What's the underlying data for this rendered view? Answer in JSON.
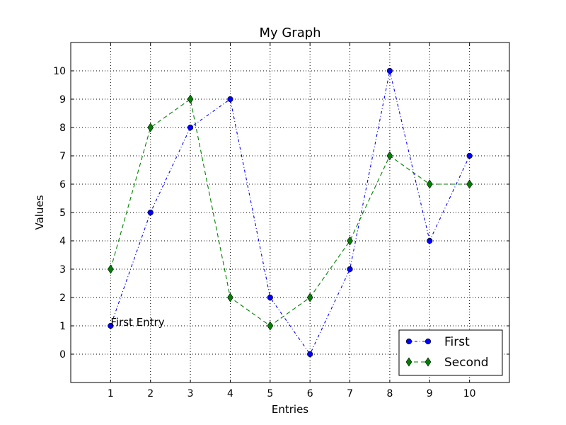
{
  "chart_data": {
    "type": "line",
    "title": "My Graph",
    "xlabel": "Entries",
    "ylabel": "Values",
    "x": [
      1,
      2,
      3,
      4,
      5,
      6,
      7,
      8,
      9,
      10
    ],
    "xlim": [
      0,
      11
    ],
    "ylim": [
      -1,
      11
    ],
    "xticks": [
      "1",
      "2",
      "3",
      "4",
      "5",
      "6",
      "7",
      "8",
      "9",
      "10"
    ],
    "yticks": [
      "0",
      "1",
      "2",
      "3",
      "4",
      "5",
      "6",
      "7",
      "8",
      "9",
      "10"
    ],
    "grid": true,
    "legend_position": "lower-right",
    "series": [
      {
        "name": "First",
        "values": [
          1,
          5,
          8,
          9,
          2,
          0,
          3,
          10,
          4,
          7
        ],
        "color": "#0000ff",
        "marker": "circle",
        "linestyle": "dash-dot"
      },
      {
        "name": "Second",
        "values": [
          3,
          8,
          9,
          2,
          1,
          2,
          4,
          7,
          6,
          6
        ],
        "color": "#008000",
        "marker": "diamond",
        "linestyle": "dashed"
      }
    ],
    "annotations": [
      {
        "text": "First Entry",
        "x": 1,
        "y": 1
      }
    ]
  }
}
